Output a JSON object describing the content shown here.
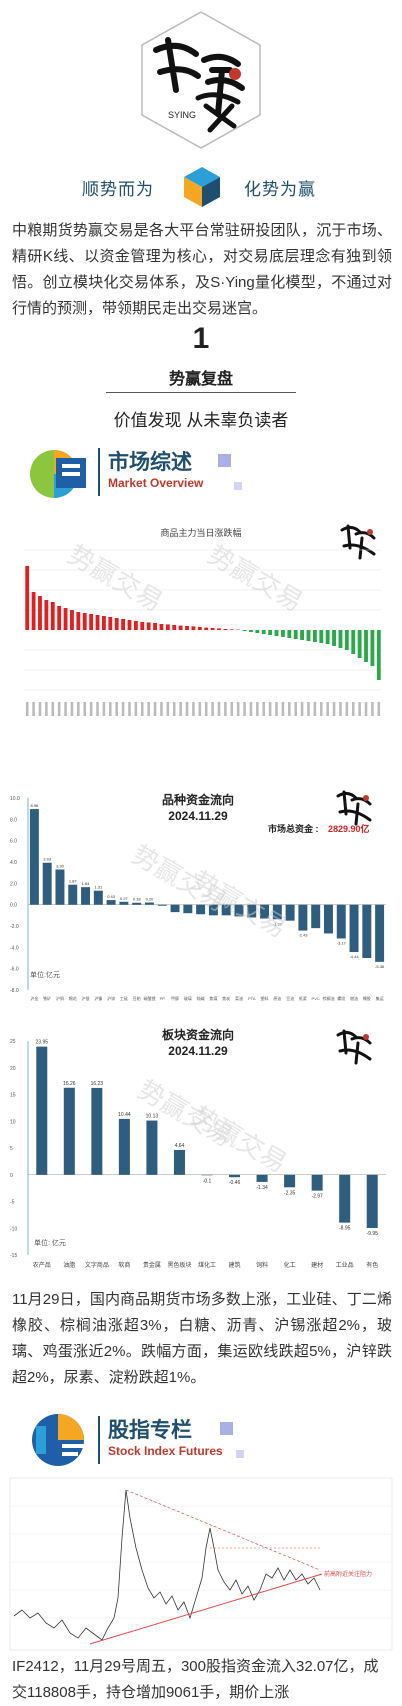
{
  "brand": {
    "logo_text": "势赢",
    "logo_sub": "SYING",
    "slogan_left": "顺势而为",
    "slogan_right": "化势为赢"
  },
  "intro": "中粮期货势赢交易是各大平台常驻研投团队，沉于市场、精研K线、以资金管理为核心，对交易底层理念有独到领悟。创立模块化交易体系，及S·Ying量化模型，不通过对行情的预测，带领期民走出交易迷宫。",
  "section": {
    "number": "1",
    "title": "势赢复盘",
    "subtitle": "价值发现 从未辜负读者"
  },
  "market_overview": {
    "title_cn": "市场综述",
    "title_en": "Market Overview"
  },
  "watermark": "势赢交易",
  "chart1": {
    "title": "商品主力当日涨跌幅",
    "values": [
      3.2,
      1.9,
      1.7,
      1.5,
      1.4,
      1.2,
      1.1,
      1.0,
      0.9,
      0.85,
      0.8,
      0.75,
      0.7,
      0.65,
      0.6,
      0.55,
      0.5,
      0.45,
      0.4,
      0.38,
      0.35,
      0.3,
      0.28,
      0.25,
      0.22,
      0.2,
      0.18,
      0.15,
      0.12,
      0.1,
      0.08,
      0.05,
      0.03,
      0.02,
      -0.05,
      -0.1,
      -0.15,
      -0.2,
      -0.25,
      -0.3,
      -0.35,
      -0.4,
      -0.45,
      -0.5,
      -0.55,
      -0.6,
      -0.65,
      -0.7,
      -0.8,
      -0.9,
      -1.0,
      -1.2,
      -1.4,
      -1.6,
      -1.8,
      -2.5
    ],
    "ylim": [
      -3,
      4
    ],
    "positive_color": "#e02020",
    "negative_color": "#2aa84a"
  },
  "chart2": {
    "title": "品种资金流向",
    "date": "2024.11.29",
    "total_label": "市场总资金 :",
    "total_value": "2829.90亿",
    "unit": "单位:亿元",
    "yticks": [
      "10.0",
      "8.0",
      "6.0",
      "4.0",
      "2.0",
      "0.0",
      "-2.0",
      "-4.0",
      "-6.0",
      "-8.0"
    ],
    "values": [
      8.96,
      3.93,
      3.3,
      1.87,
      1.64,
      1.31,
      0.43,
      0.27,
      0.18,
      0.2,
      -0.1,
      -0.7,
      -0.8,
      -0.9,
      -1.0,
      -1.0,
      -1.1,
      -1.2,
      -1.3,
      -1.37,
      -1.5,
      -2.43,
      -2.2,
      -2.7,
      -3.17,
      -4.44,
      -5.0,
      -5.36
    ],
    "labels": [
      "8.96",
      "3.93",
      "3.30",
      "1.87",
      "1.64",
      "1.31",
      "0.43",
      "0.27",
      "0.18",
      "0.20",
      "",
      "",
      "",
      "",
      "",
      "",
      "",
      "",
      "",
      "-1.37",
      "",
      "-2.43",
      "",
      "",
      "-3.17",
      "-4.44",
      "",
      "-5.36"
    ],
    "categories": [
      "沪金",
      "铁矿",
      "沪铜",
      "棉花",
      "沪银",
      "沪镍",
      "沪锌",
      "工硅",
      "豆粕",
      "碳酸锂",
      "PP",
      "甲醇",
      "玻璃",
      "纯碱",
      "焦煤",
      "焦炭",
      "菜油",
      "PTA",
      "塑料",
      "原油",
      "豆油",
      "纸浆",
      "PVC",
      "棕榈油",
      "螺纹",
      "燃油",
      "橡胶",
      "集运"
    ],
    "ylim": [
      -8,
      10
    ]
  },
  "chart3": {
    "title": "板块资金流向",
    "date": "2024.11.29",
    "unit": "单位: 亿元",
    "yticks": [
      "25",
      "20",
      "15",
      "10",
      "5",
      "0",
      "-5",
      "-10",
      "-15"
    ],
    "values": [
      23.95,
      16.26,
      16.23,
      10.44,
      10.13,
      4.64,
      -0.1,
      -0.46,
      -1.34,
      -2.35,
      -2.97,
      -8.95,
      -9.95
    ],
    "labels": [
      "23.95",
      "16.26",
      "16.23",
      "10.44",
      "10.13",
      "4.64",
      "-0.1",
      "-0.46",
      "-1.34",
      "-2.35",
      "-2.97",
      "-8.95",
      "-9.95"
    ],
    "categories": [
      "农产品",
      "油脂",
      "文字商品",
      "软商",
      "贵金属",
      "黑色板块",
      "煤化工",
      "建筑",
      "饲料",
      "化工",
      "建材",
      "工业品",
      "有色"
    ],
    "ylim": [
      -15,
      25
    ]
  },
  "para_market": "11月29日，国内商品期货市场多数上涨，工业硅、丁二烯橡胶、棕榈油涨超3%，白糖、沥青、沪锡涨超2%，玻璃、鸡蛋涨近2%。跌幅方面，集运欧线跌超5%，沪锌跌超2%，尿素、淀粉跌超1%。",
  "stock_index": {
    "title_cn": "股指专栏",
    "title_en": "Stock Index Futures",
    "annotation": "前高附近关注阻力"
  },
  "para_if": "IF2412，11月29号周五，300股指资金流入32.07亿，成交118808手，持仓增加9061手，期价上涨"
}
